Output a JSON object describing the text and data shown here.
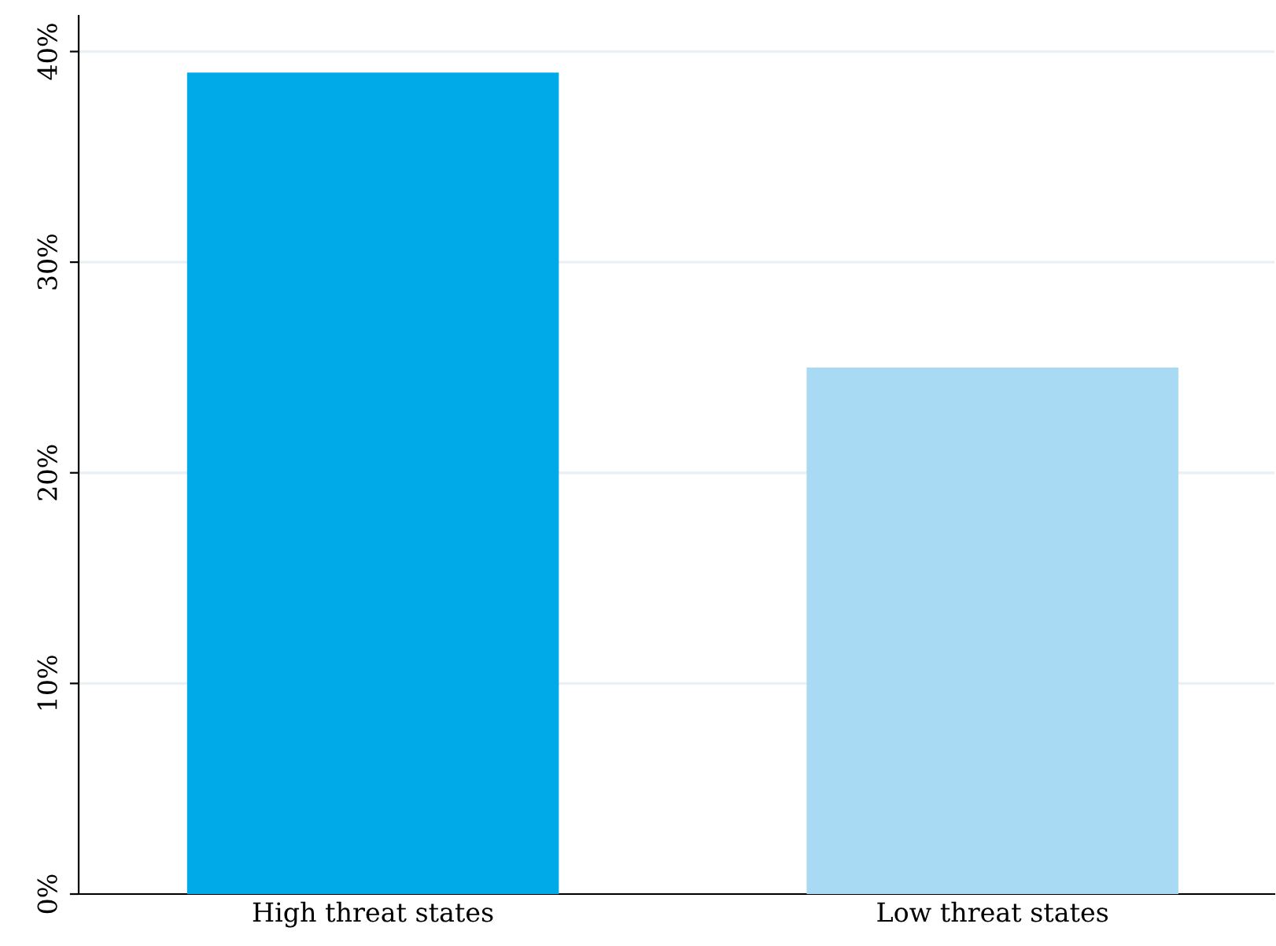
{
  "chart_data": {
    "type": "bar",
    "categories": [
      "High threat states",
      "Low threat states"
    ],
    "values": [
      39,
      25
    ],
    "colors": [
      "#00aae9",
      "#a9daf3"
    ],
    "ylim": [
      0,
      41.7
    ],
    "yticks": [
      {
        "value": 0,
        "label": "0%"
      },
      {
        "value": 10,
        "label": "10%"
      },
      {
        "value": 20,
        "label": "20%"
      },
      {
        "value": 30,
        "label": "30%"
      },
      {
        "value": 40,
        "label": "40%"
      }
    ],
    "grid": "y",
    "legend": false
  }
}
